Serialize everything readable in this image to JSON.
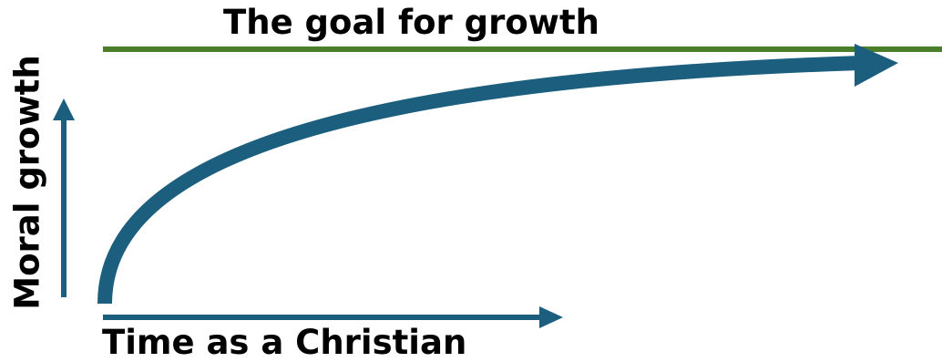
{
  "diagram": {
    "goal_label": "The goal for growth",
    "x_axis_label": "Time as a Christian",
    "y_axis_label": "Moral growth"
  },
  "colors": {
    "goal_line": "#4a7e2b",
    "growth_curve": "#1b5e7e",
    "axis_arrows": "#1b5e7e",
    "text": "#000000"
  }
}
